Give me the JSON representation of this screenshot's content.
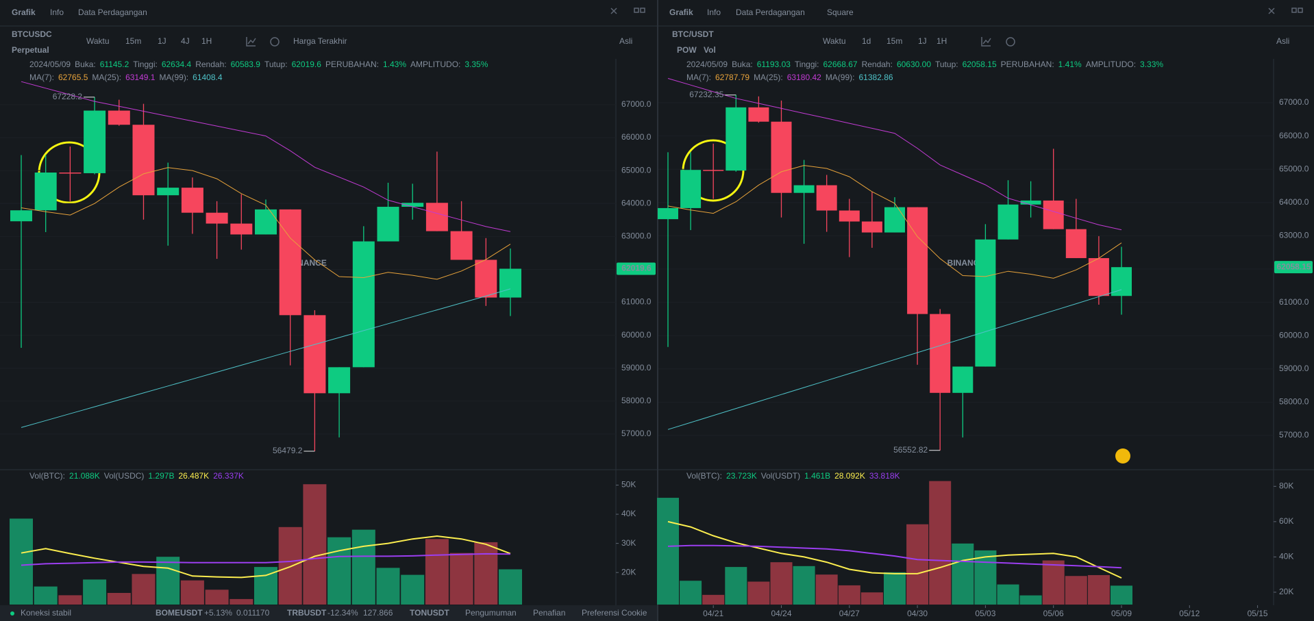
{
  "panels": [
    {
      "tabs": [
        "Grafik",
        "Info",
        "Data Perdagangan"
      ],
      "symbol": "BTCUSDC",
      "badges": [
        "Perpetual"
      ],
      "intervals": [
        "Waktu",
        "15m",
        "1J",
        "4J",
        "1H"
      ],
      "price_type": "Harga Terakhir",
      "mode": "Asli",
      "watermark": "BINANCE",
      "info": [
        {
          "text": "2024/05/09",
          "color": "#848e9c"
        },
        {
          "text": "Buka:",
          "color": "#848e9c"
        },
        {
          "text": "61145.2",
          "color": "#0ecb81"
        },
        {
          "text": "Tinggi:",
          "color": "#848e9c"
        },
        {
          "text": "62634.4",
          "color": "#0ecb81"
        },
        {
          "text": "Rendah:",
          "color": "#848e9c"
        },
        {
          "text": "60583.9",
          "color": "#0ecb81"
        },
        {
          "text": "Tutup:",
          "color": "#848e9c"
        },
        {
          "text": "62019.6",
          "color": "#0ecb81"
        },
        {
          "text": "PERUBAHAN:",
          "color": "#848e9c"
        },
        {
          "text": "1.43%",
          "color": "#0ecb81"
        },
        {
          "text": "AMPLITUDO:",
          "color": "#848e9c"
        },
        {
          "text": "3.35%",
          "color": "#0ecb81"
        }
      ],
      "ma_info": [
        {
          "text": "MA(7):",
          "color": "#848e9c"
        },
        {
          "text": "62765.5",
          "color": "#e8a33b"
        },
        {
          "text": "MA(25):",
          "color": "#848e9c"
        },
        {
          "text": "63149.1",
          "color": "#c23bd4"
        },
        {
          "text": "MA(99):",
          "color": "#848e9c"
        },
        {
          "text": "61408.4",
          "color": "#4fc3c9"
        }
      ],
      "vol_info": [
        {
          "text": "Vol(BTC):",
          "color": "#848e9c"
        },
        {
          "text": "21.088K",
          "color": "#0ecb81"
        },
        {
          "text": "Vol(USDC)",
          "color": "#848e9c"
        },
        {
          "text": "1.297B",
          "color": "#0ecb81"
        },
        {
          "text": "26.487K",
          "color": "#fcee4f"
        },
        {
          "text": "26.337K",
          "color": "#9b3ef0"
        }
      ],
      "chart_data": {
        "type": "candlestick",
        "grid": true,
        "up_color": "#0ecb81",
        "down_color": "#f6465d",
        "open": [
          63460,
          63793,
          64940,
          64920,
          66820,
          66390,
          64250,
          64480,
          63720,
          63390,
          63060,
          63820,
          60610,
          58240,
          59030,
          62850,
          63900,
          64020,
          63160,
          62290,
          61145.2
        ],
        "high": [
          65470,
          65473,
          65730,
          67228.2,
          67150,
          67025,
          65240,
          64790,
          64070,
          64280,
          64120,
          63820,
          60760,
          59030,
          63310,
          64630,
          64600,
          65575,
          64070,
          62950,
          62634.4
        ],
        "low": [
          59620,
          63132,
          64070,
          64888,
          66360,
          63510,
          62720,
          63080,
          62320,
          62600,
          63060,
          59085,
          56479.2,
          56900,
          59030,
          62850,
          63510,
          63160,
          62290,
          60890,
          60583.9
        ],
        "close": [
          63793,
          64940,
          64920,
          66820,
          66390,
          64250,
          64480,
          63720,
          63390,
          63060,
          63820,
          60610,
          58240,
          59030,
          62850,
          63900,
          64020,
          63160,
          62290,
          61145.2,
          62019.6
        ],
        "ma_lines": [
          {
            "color": "#e8a33b",
            "values": [
              63870,
              63750,
              63650,
              64000,
              64500,
              64900,
              65090,
              65000,
              64750,
              64300,
              63950,
              62950,
              62290,
              61780,
              61750,
              61910,
              61820,
              61700,
              61950,
              62300,
              62765.5
            ]
          },
          {
            "color": "#c23bd4",
            "values": [
              67700,
              67500,
              67300,
              67100,
              66950,
              66800,
              66650,
              66500,
              66350,
              66200,
              66050,
              65600,
              65100,
              64800,
              64500,
              64100,
              63900,
              63700,
              63500,
              63300,
              63149.1
            ]
          },
          {
            "color": "#4fc3c9",
            "values": [
              57200,
              57410,
              57620,
              57830,
              58040,
              58250,
              58460,
              58670,
              58880,
              59090,
              59300,
              59510,
              59720,
              59930,
              60140,
              60350,
              60560,
              60770,
              60980,
              61190,
              61408.4
            ]
          }
        ],
        "ylim": [
          55940,
          68390
        ],
        "yticks": [
          {
            "value": 57000,
            "label": "57000.0"
          },
          {
            "value": 58000,
            "label": "58000.0"
          },
          {
            "value": 59000,
            "label": "59000.0"
          },
          {
            "value": 60000,
            "label": "60000.0"
          },
          {
            "value": 61000,
            "label": "61000.0"
          },
          {
            "value": 62000,
            "label": "62000.0"
          },
          {
            "value": 63000,
            "label": "63000.0"
          },
          {
            "value": 64000,
            "label": "64000.0"
          },
          {
            "value": 65000,
            "label": "65000.0"
          },
          {
            "value": 66000,
            "label": "66000.0"
          },
          {
            "value": 67000,
            "label": "67000.0"
          }
        ],
        "last_label": "62019.6",
        "max_label": "67228.2",
        "min_label": "56479.2",
        "volume": {
          "up_color": "#168a62",
          "down_color": "#8e3540",
          "values": [
            38.5,
            15.2,
            12.2,
            17.6,
            13,
            19.5,
            25.4,
            17.3,
            14.1,
            10.9,
            21.9,
            35.6,
            50.3,
            32.1,
            34.7,
            21.6,
            19.2,
            31.5,
            26.7,
            30.4,
            21.1
          ],
          "ma_lines": [
            {
              "color": "#fcee4f",
              "values": [
                26.7,
                28.2,
                26.5,
                24.9,
                23.5,
                22.1,
                21.5,
                18.8,
                18.5,
                18.3,
                19,
                22,
                25.6,
                27.5,
                29,
                30,
                31.5,
                32.5,
                31.5,
                29.7,
                26.487
              ]
            },
            {
              "color": "#9b3ef0",
              "values": [
                22.5,
                23,
                23.2,
                23.4,
                23.6,
                23.6,
                23.5,
                23.4,
                23.4,
                23.4,
                23.4,
                23.8,
                24.8,
                25.5,
                25.6,
                25.6,
                25.7,
                26,
                26.2,
                26.4,
                26.337
              ]
            }
          ],
          "ylim": [
            9,
            52
          ],
          "yticks": [
            {
              "value": 20,
              "label": "20K"
            },
            {
              "value": 30,
              "label": "30K"
            },
            {
              "value": 40,
              "label": "40K"
            },
            {
              "value": 50,
              "label": "50K"
            }
          ]
        }
      }
    },
    {
      "tabs": [
        "Grafik",
        "Info",
        "Data Perdagangan",
        "Square"
      ],
      "symbol": "BTC/USDT",
      "badges": [
        "POW",
        "Vol"
      ],
      "intervals": [
        "Waktu",
        "1d",
        "15m",
        "1J",
        "1H"
      ],
      "mode": "Asli",
      "watermark": "BINANCE",
      "info": [
        {
          "text": "2024/05/09",
          "color": "#848e9c"
        },
        {
          "text": "Buka:",
          "color": "#848e9c"
        },
        {
          "text": "61193.03",
          "color": "#0ecb81"
        },
        {
          "text": "Tinggi:",
          "color": "#848e9c"
        },
        {
          "text": "62668.67",
          "color": "#0ecb81"
        },
        {
          "text": "Rendah:",
          "color": "#848e9c"
        },
        {
          "text": "60630.00",
          "color": "#0ecb81"
        },
        {
          "text": "Tutup:",
          "color": "#848e9c"
        },
        {
          "text": "62058.15",
          "color": "#0ecb81"
        },
        {
          "text": "PERUBAHAN:",
          "color": "#848e9c"
        },
        {
          "text": "1.41%",
          "color": "#0ecb81"
        },
        {
          "text": "AMPLITUDO:",
          "color": "#848e9c"
        },
        {
          "text": "3.33%",
          "color": "#0ecb81"
        }
      ],
      "ma_info": [
        {
          "text": "MA(7):",
          "color": "#848e9c"
        },
        {
          "text": "62787.79",
          "color": "#e8a33b"
        },
        {
          "text": "MA(25):",
          "color": "#848e9c"
        },
        {
          "text": "63180.42",
          "color": "#c23bd4"
        },
        {
          "text": "MA(99):",
          "color": "#848e9c"
        },
        {
          "text": "61382.86",
          "color": "#4fc3c9"
        }
      ],
      "vol_info": [
        {
          "text": "Vol(BTC):",
          "color": "#848e9c"
        },
        {
          "text": "23.723K",
          "color": "#0ecb81"
        },
        {
          "text": "Vol(USDT)",
          "color": "#848e9c"
        },
        {
          "text": "1.461B",
          "color": "#0ecb81"
        },
        {
          "text": "28.092K",
          "color": "#fcee4f"
        },
        {
          "text": "33.818K",
          "color": "#9b3ef0"
        }
      ],
      "chart_data": {
        "type": "candlestick",
        "grid": true,
        "up_color": "#0ecb81",
        "down_color": "#f6465d",
        "open": [
          63500,
          63833,
          64980,
          64960,
          66860,
          66430,
          64290,
          64520,
          63760,
          63430,
          63100,
          63860,
          60650,
          58280,
          59070,
          62890,
          63940,
          64060,
          63200,
          62330,
          61193.03
        ],
        "high": [
          65510,
          65513,
          65770,
          67232.35,
          67190,
          67065,
          65280,
          64830,
          64110,
          64320,
          64160,
          63860,
          60800,
          59070,
          63350,
          64670,
          64640,
          65615,
          64110,
          62990,
          62668.67
        ],
        "low": [
          59660,
          63172,
          64110,
          64928,
          66400,
          63550,
          62760,
          63120,
          62360,
          62640,
          63100,
          59125,
          56552.82,
          56940,
          59070,
          62890,
          63550,
          63200,
          62330,
          60930,
          60630
        ],
        "close": [
          63833,
          64980,
          64960,
          66860,
          66430,
          64290,
          64520,
          63760,
          63430,
          63100,
          63860,
          60650,
          58280,
          59070,
          62890,
          63940,
          64060,
          63200,
          62330,
          61193.03,
          62058.15
        ],
        "ma_lines": [
          {
            "color": "#e8a33b",
            "values": [
              63895,
              63775,
              63675,
              64025,
              64525,
              64925,
              65115,
              65025,
              64775,
              64325,
              63975,
              62975,
              62315,
              61805,
              61775,
              61935,
              61845,
              61725,
              61975,
              62325,
              62787.79
            ]
          },
          {
            "color": "#c23bd4",
            "values": [
              67730,
              67530,
              67330,
              67130,
              66980,
              66830,
              66680,
              66530,
              66380,
              66230,
              66080,
              65630,
              65130,
              64830,
              64530,
              64130,
              63930,
              63730,
              63530,
              63330,
              63180.42
            ]
          },
          {
            "color": "#4fc3c9",
            "values": [
              57180,
              57390,
              57600,
              57810,
              58020,
              58230,
              58440,
              58650,
              58860,
              59070,
              59280,
              59490,
              59700,
              59910,
              60120,
              60330,
              60540,
              60750,
              60960,
              61170,
              61382.86
            ]
          }
        ],
        "ylim": [
          55992,
          68317
        ],
        "yticks": [
          {
            "value": 57000,
            "label": "57000.0"
          },
          {
            "value": 58000,
            "label": "58000.0"
          },
          {
            "value": 59000,
            "label": "59000.0"
          },
          {
            "value": 60000,
            "label": "60000.0"
          },
          {
            "value": 61000,
            "label": "61000.0"
          },
          {
            "value": 62000,
            "label": "62000.0"
          },
          {
            "value": 63000,
            "label": "63000.0"
          },
          {
            "value": 64000,
            "label": "64000.0"
          },
          {
            "value": 65000,
            "label": "65000.0"
          },
          {
            "value": 66000,
            "label": "66000.0"
          },
          {
            "value": 67000,
            "label": "67000.0"
          }
        ],
        "xticks": [
          {
            "value": 2,
            "label": "04/21"
          },
          {
            "value": 5,
            "label": "04/24"
          },
          {
            "value": 8,
            "label": "04/27"
          },
          {
            "value": 11,
            "label": "04/30"
          },
          {
            "value": 14,
            "label": "05/03"
          },
          {
            "value": 17,
            "label": "05/06"
          },
          {
            "value": 20,
            "label": "05/09"
          },
          {
            "value": 23,
            "label": "05/12"
          },
          {
            "value": 26,
            "label": "05/15"
          }
        ],
        "last_label": "62058.15",
        "max_label": "67232.35",
        "min_label": "56552.82",
        "volume": {
          "up_color": "#168a62",
          "down_color": "#8e3540",
          "values": [
            73.5,
            26.5,
            18.5,
            34.3,
            26,
            37,
            34.8,
            30,
            23.9,
            19.9,
            31.3,
            58.5,
            83,
            47.6,
            43.7,
            24.4,
            18.2,
            38,
            29.2,
            29.7,
            23.723
          ],
          "ma_lines": [
            {
              "color": "#fcee4f",
              "values": [
                60,
                57,
                52,
                48,
                45,
                42,
                40,
                37,
                33,
                31,
                30.5,
                30.5,
                34,
                38,
                40,
                41,
                41.5,
                42,
                40,
                34,
                28.092
              ]
            },
            {
              "color": "#9b3ef0",
              "values": [
                46,
                46.5,
                46.5,
                46.3,
                46,
                45.5,
                45,
                44.5,
                43.5,
                42,
                40.5,
                38.5,
                38,
                37.5,
                37,
                36.5,
                36,
                35.5,
                35,
                34.5,
                33.818
              ]
            }
          ],
          "ylim": [
            13,
            84
          ],
          "yticks": [
            {
              "value": 20,
              "label": "20K"
            },
            {
              "value": 40,
              "label": "40K"
            },
            {
              "value": 60,
              "label": "60K"
            },
            {
              "value": 80,
              "label": "80K"
            }
          ]
        }
      }
    }
  ],
  "status_bar": [
    {
      "text": "Koneksi stabil",
      "color": "#0ecb81"
    },
    {
      "text": "BOMEUSDT",
      "color": "#eaecef"
    },
    {
      "text": "+5.13%",
      "color": "#0ecb81"
    },
    {
      "text": "0.011170",
      "color": "#b7bdc6"
    },
    {
      "text": "TRBUSDT",
      "color": "#eaecef"
    },
    {
      "text": "-12.34%",
      "color": "#f6465d"
    },
    {
      "text": "127.866",
      "color": "#b7bdc6"
    },
    {
      "text": "TONUSDT",
      "color": "#eaecef"
    },
    {
      "text": "Pengumuman",
      "color": "#b7bdc6"
    },
    {
      "text": "Penafian",
      "color": "#b7bdc6"
    },
    {
      "text": "Preferensi Cookie",
      "color": "#b7bdc6"
    }
  ]
}
